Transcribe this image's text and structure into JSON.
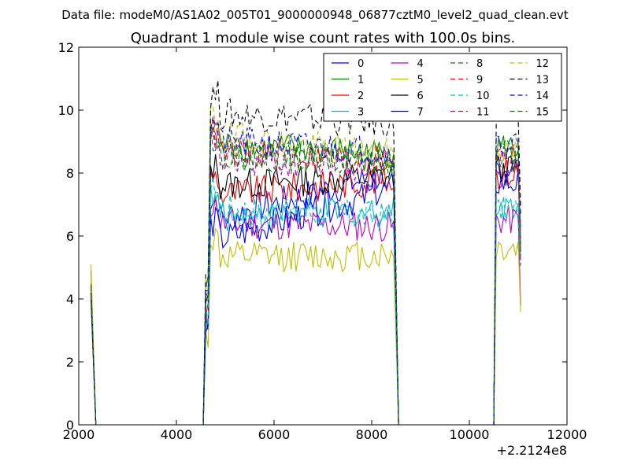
{
  "header": {
    "file_label": "Data file: modeM0/AS1A02_005T01_9000000948_06877cztM0_level2_quad_clean.evt"
  },
  "chart_data": {
    "type": "line",
    "title": "Quadrant 1 module wise count rates with 100.0s bins.",
    "xlabel": "",
    "ylabel": "",
    "x_offset_label": "+2.2124e8",
    "xlim": [
      2000,
      12000
    ],
    "ylim": [
      0,
      12
    ],
    "x_ticks": [
      2000,
      4000,
      6000,
      8000,
      10000,
      12000
    ],
    "y_ticks": [
      0,
      2,
      4,
      6,
      8,
      10,
      12
    ],
    "grid": false,
    "legend_position": "top-right",
    "legend_columns": 4,
    "series_styles": [
      {
        "name": "0",
        "color": "#0000ff",
        "dash": "solid"
      },
      {
        "name": "1",
        "color": "#008000",
        "dash": "solid"
      },
      {
        "name": "2",
        "color": "#ff0000",
        "dash": "solid"
      },
      {
        "name": "3",
        "color": "#00bfbf",
        "dash": "solid"
      },
      {
        "name": "4",
        "color": "#bf00bf",
        "dash": "solid"
      },
      {
        "name": "5",
        "color": "#bfbf00",
        "dash": "solid"
      },
      {
        "name": "6",
        "color": "#000000",
        "dash": "solid"
      },
      {
        "name": "7",
        "color": "#0000ff",
        "dash": "solid"
      },
      {
        "name": "8",
        "color": "#008000",
        "dash": "dashed"
      },
      {
        "name": "9",
        "color": "#ff0000",
        "dash": "dashed"
      },
      {
        "name": "10",
        "color": "#00bfbf",
        "dash": "dashed"
      },
      {
        "name": "11",
        "color": "#bf00bf",
        "dash": "dashed"
      },
      {
        "name": "12",
        "color": "#bfbf00",
        "dash": "dashed"
      },
      {
        "name": "13",
        "color": "#000000",
        "dash": "dashed"
      },
      {
        "name": "14",
        "color": "#0000ff",
        "dash": "dashed"
      },
      {
        "name": "15",
        "color": "#008000",
        "dash": "dashed"
      }
    ],
    "segments": [
      {
        "start": 2250,
        "end": 2350,
        "step": 100
      },
      {
        "start": 4550,
        "end": 8450,
        "step": 100
      },
      {
        "start": 10500,
        "end": 11050,
        "step": 100
      }
    ],
    "gap_x": [
      2350,
      4550,
      8450,
      8550,
      10450,
      10500
    ],
    "series_levels": [
      {
        "name": "0",
        "start_value": 4.5,
        "level": 6.5,
        "late_level": 8.0
      },
      {
        "name": "1",
        "start_value": 4.3,
        "level": 8.9,
        "late_level": 8.6
      },
      {
        "name": "2",
        "start_value": 4.9,
        "level": 7.3,
        "late_level": 7.8
      },
      {
        "name": "3",
        "start_value": 4.2,
        "level": 6.6,
        "late_level": 6.8
      },
      {
        "name": "4",
        "start_value": 4.4,
        "level": 6.4,
        "late_level": 6.3
      },
      {
        "name": "5",
        "start_value": 5.1,
        "level": 5.3,
        "late_level": 5.4
      },
      {
        "name": "6",
        "start_value": 4.4,
        "level": 7.6,
        "late_level": 7.9
      },
      {
        "name": "7",
        "start_value": 4.0,
        "level": 5.8,
        "late_level": 7.5
      },
      {
        "name": "8",
        "start_value": 4.3,
        "level": 8.6,
        "late_level": 8.3
      },
      {
        "name": "9",
        "start_value": 4.5,
        "level": 8.7,
        "late_level": 8.4
      },
      {
        "name": "10",
        "start_value": 4.0,
        "level": 6.9,
        "late_level": 6.6
      },
      {
        "name": "11",
        "start_value": 4.3,
        "level": 8.4,
        "late_level": 8.2
      },
      {
        "name": "12",
        "start_value": 4.6,
        "level": 9.2,
        "late_level": 8.6
      },
      {
        "name": "13",
        "start_value": 4.2,
        "level": 9.9,
        "late_level": 9.6
      },
      {
        "name": "14",
        "start_value": 4.1,
        "level": 9.0,
        "late_level": 8.7
      },
      {
        "name": "15",
        "start_value": 4.4,
        "level": 8.7,
        "late_level": 8.4
      }
    ]
  }
}
